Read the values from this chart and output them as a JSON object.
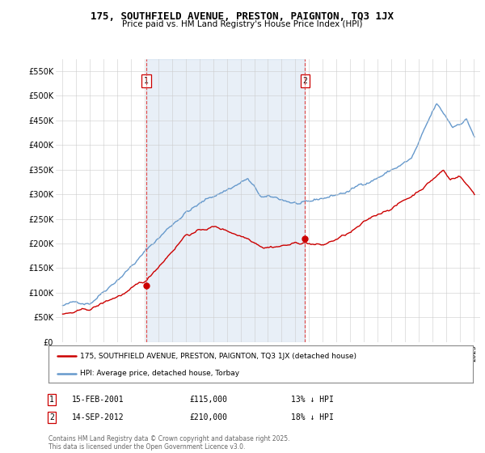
{
  "title": "175, SOUTHFIELD AVENUE, PRESTON, PAIGNTON, TQ3 1JX",
  "subtitle": "Price paid vs. HM Land Registry's House Price Index (HPI)",
  "legend_line1": "175, SOUTHFIELD AVENUE, PRESTON, PAIGNTON, TQ3 1JX (detached house)",
  "legend_line2": "HPI: Average price, detached house, Torbay",
  "footer": "Contains HM Land Registry data © Crown copyright and database right 2025.\nThis data is licensed under the Open Government Licence v3.0.",
  "annotation1": {
    "label": "1",
    "date": "15-FEB-2001",
    "price": "£115,000",
    "hpi": "13% ↓ HPI"
  },
  "annotation2": {
    "label": "2",
    "date": "14-SEP-2012",
    "price": "£210,000",
    "hpi": "18% ↓ HPI"
  },
  "vline1_x": 2001.12,
  "vline2_x": 2012.71,
  "point1_y": 115000,
  "point2_y": 210000,
  "ylim": [
    0,
    575000
  ],
  "xlim": [
    1994.5,
    2025.5
  ],
  "yticks": [
    0,
    50000,
    100000,
    150000,
    200000,
    250000,
    300000,
    350000,
    400000,
    450000,
    500000,
    550000
  ],
  "ytick_labels": [
    "£0",
    "£50K",
    "£100K",
    "£150K",
    "£200K",
    "£250K",
    "£300K",
    "£350K",
    "£400K",
    "£450K",
    "£500K",
    "£550K"
  ],
  "red_color": "#cc0000",
  "blue_color": "#6699cc",
  "blue_fill": "#ddeeff",
  "background": "#ffffff",
  "grid_color": "#cccccc",
  "vline_color": "#dd4444"
}
